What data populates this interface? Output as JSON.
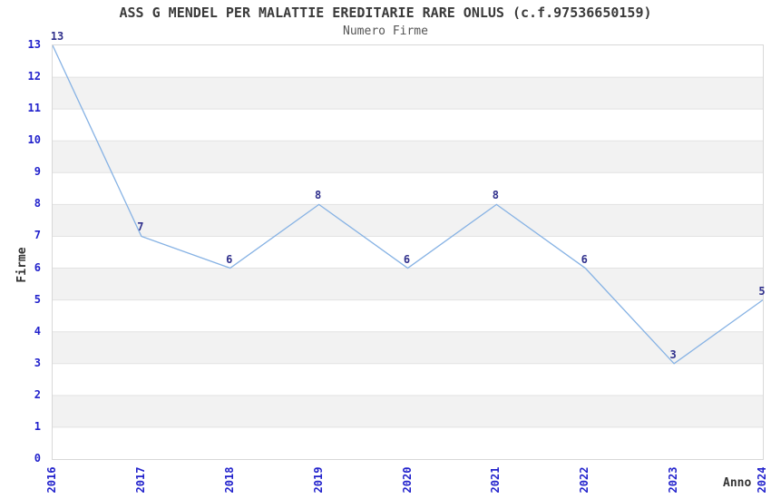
{
  "title": "ASS G MENDEL PER MALATTIE EREDITARIE RARE ONLUS (c.f.97536650159)",
  "subtitle": "Numero Firme",
  "chart_data": {
    "type": "line",
    "title": "ASS G MENDEL PER MALATTIE EREDITARIE RARE ONLUS (c.f.97536650159)",
    "subtitle": "Numero Firme",
    "x": [
      2016,
      2017,
      2018,
      2019,
      2020,
      2021,
      2022,
      2023,
      2024
    ],
    "values": [
      13,
      7,
      6,
      8,
      6,
      8,
      6,
      3,
      5
    ],
    "point_labels": [
      "13",
      "7",
      "6",
      "8",
      "6",
      "8",
      "6",
      "3",
      "5"
    ],
    "xlabel": "Anno",
    "ylabel": "Firme",
    "ylim": [
      0,
      13
    ],
    "yticks": [
      0,
      1,
      2,
      3,
      4,
      5,
      6,
      7,
      8,
      9,
      10,
      11,
      12,
      13
    ],
    "grid": "horizontal gridlines with alternating white/gray bands",
    "legend_position": "none",
    "line_style": "solid, no markers"
  },
  "colors": {
    "line": "#86B2E4",
    "tick_label": "#2222CC",
    "point_label": "#30308C",
    "title": "#3A3A3A",
    "subtitle": "#555555",
    "axis_label": "#333333",
    "band": "#F2F2F2",
    "grid": "#E2E2E2",
    "border": "#D8D8D8",
    "background": "#FFFFFF"
  }
}
